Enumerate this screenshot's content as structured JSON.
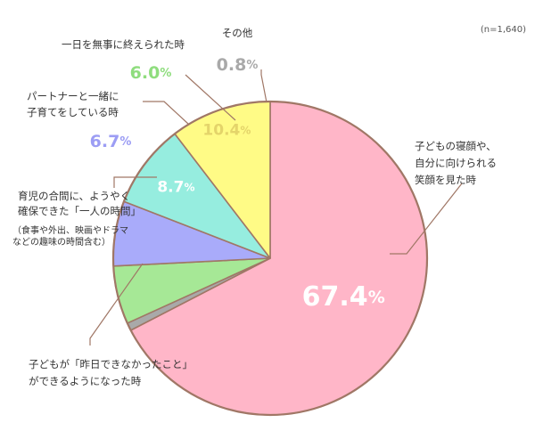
{
  "chart_data": {
    "type": "pie",
    "note": "(n=1,640)",
    "slices": [
      {
        "label_lines": [
          "子どもの寝顔や、",
          "自分に向けられる",
          "笑顔を見た時"
        ],
        "sub_lines": [],
        "value": 67.4,
        "display": "67.4",
        "unit": "%",
        "color": "#FFB6C8",
        "pct_color": "#ffffff"
      },
      {
        "label_lines": [
          "子どもが「昨日できなかったこと」",
          "ができるようになった時"
        ],
        "sub_lines": [],
        "value": 10.4,
        "display": "10.4",
        "unit": "%",
        "color": "#FFFB86",
        "pct_color": "#E4D46A"
      },
      {
        "label_lines": [
          "育児の合間に、ようやく",
          "確保できた「一人の時間」"
        ],
        "sub_lines": [
          "（食事や外出、映画やドラマ",
          "などの趣味の時間含む）"
        ],
        "value": 8.7,
        "display": "8.7",
        "unit": "%",
        "color": "#96EDDF",
        "pct_color": "#ffffff"
      },
      {
        "label_lines": [
          "パートナーと一緒に",
          "子育てをしている時"
        ],
        "sub_lines": [],
        "value": 6.7,
        "display": "6.7",
        "unit": "%",
        "color": "#A9ABFA",
        "pct_color": "#9C9DF4"
      },
      {
        "label_lines": [
          "一日を無事に終えられた時"
        ],
        "sub_lines": [],
        "value": 6.0,
        "display": "6.0",
        "unit": "%",
        "color": "#A6E896",
        "pct_color": "#8FDD7E"
      },
      {
        "label_lines": [
          "その他"
        ],
        "sub_lines": [],
        "value": 0.8,
        "display": "0.8",
        "unit": "%",
        "color": "#A9A9A9",
        "pct_color": "#A9A9A9"
      }
    ]
  }
}
